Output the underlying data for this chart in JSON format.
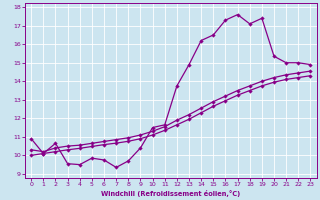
{
  "xlabel": "Windchill (Refroidissement éolien,°C)",
  "bg_color": "#cce5f0",
  "line_color": "#880088",
  "xlim": [
    -0.5,
    23.5
  ],
  "ylim": [
    8.8,
    18.2
  ],
  "xticks": [
    0,
    1,
    2,
    3,
    4,
    5,
    6,
    7,
    8,
    9,
    10,
    11,
    12,
    13,
    14,
    15,
    16,
    17,
    18,
    19,
    20,
    21,
    22,
    23
  ],
  "yticks": [
    9,
    10,
    11,
    12,
    13,
    14,
    15,
    16,
    17,
    18
  ],
  "curve1_x": [
    0,
    1,
    2,
    3,
    4,
    5,
    6,
    7,
    8,
    9,
    10,
    11,
    12,
    13,
    14,
    15,
    16,
    17,
    18,
    19,
    20,
    21,
    22,
    23
  ],
  "curve1_y": [
    10.9,
    10.1,
    10.65,
    9.55,
    9.5,
    9.85,
    9.75,
    9.35,
    9.7,
    10.4,
    11.5,
    11.65,
    13.75,
    14.9,
    16.2,
    16.5,
    17.3,
    17.6,
    17.1,
    17.4,
    15.35,
    15.0,
    15.0,
    14.9
  ],
  "curve2_x": [
    0,
    1,
    2,
    3,
    4,
    5,
    6,
    7,
    8,
    9,
    10,
    11,
    12,
    13,
    14,
    15,
    16,
    17,
    18,
    19,
    20,
    21,
    22,
    23
  ],
  "curve2_y": [
    10.3,
    10.2,
    10.4,
    10.5,
    10.55,
    10.65,
    10.75,
    10.85,
    10.95,
    11.1,
    11.3,
    11.55,
    11.9,
    12.2,
    12.55,
    12.9,
    13.2,
    13.5,
    13.75,
    14.0,
    14.2,
    14.35,
    14.45,
    14.55
  ],
  "curve3_x": [
    0,
    1,
    2,
    3,
    4,
    5,
    6,
    7,
    8,
    9,
    10,
    11,
    12,
    13,
    14,
    15,
    16,
    17,
    18,
    19,
    20,
    21,
    22,
    23
  ],
  "curve3_y": [
    10.0,
    10.1,
    10.2,
    10.3,
    10.38,
    10.48,
    10.58,
    10.66,
    10.76,
    10.9,
    11.1,
    11.35,
    11.65,
    11.95,
    12.3,
    12.65,
    12.95,
    13.25,
    13.5,
    13.75,
    13.95,
    14.1,
    14.2,
    14.3
  ]
}
